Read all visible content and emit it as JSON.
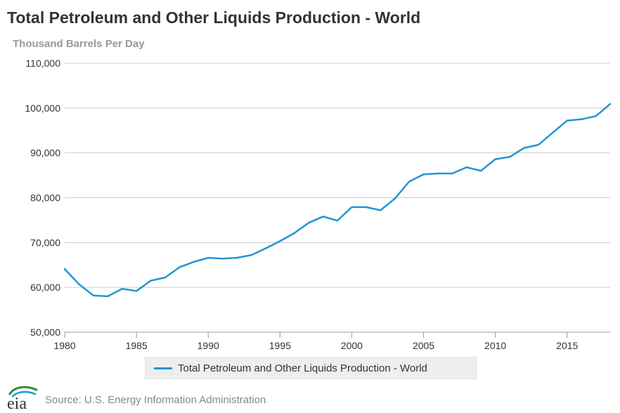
{
  "header": {
    "title": "Total Petroleum and Other Liquids Production - World",
    "subtitle": "Thousand Barrels Per Day"
  },
  "legend": {
    "label": "Total Petroleum and Other Liquids Production - World"
  },
  "footer": {
    "logo_text": "eia",
    "source": "Source: U.S. Energy Information Administration"
  },
  "colors": {
    "series": "#1f96d4",
    "grid": "#cccccc",
    "axis_text": "#333333"
  },
  "chart_data": {
    "type": "line",
    "title": "Total Petroleum and Other Liquids Production - World",
    "subtitle": "Thousand Barrels Per Day",
    "xlabel": "",
    "ylabel": "",
    "xlim": [
      1980,
      2018
    ],
    "ylim": [
      50000,
      110000
    ],
    "x_ticks": [
      1980,
      1985,
      1990,
      1995,
      2000,
      2005,
      2010,
      2015
    ],
    "x_tick_labels": [
      "1980",
      "1985",
      "1990",
      "1995",
      "2000",
      "2005",
      "2010",
      "2015"
    ],
    "y_ticks": [
      50000,
      60000,
      70000,
      80000,
      90000,
      100000,
      110000
    ],
    "y_tick_labels": [
      "50,000",
      "60,000",
      "70,000",
      "80,000",
      "90,000",
      "100,000",
      "110,000"
    ],
    "grid": true,
    "legend_position": "bottom",
    "x": [
      1980,
      1981,
      1982,
      1983,
      1984,
      1985,
      1986,
      1987,
      1988,
      1989,
      1990,
      1991,
      1992,
      1993,
      1994,
      1995,
      1996,
      1997,
      1998,
      1999,
      2000,
      2001,
      2002,
      2003,
      2004,
      2005,
      2006,
      2007,
      2008,
      2009,
      2010,
      2011,
      2012,
      2013,
      2014,
      2015,
      2016,
      2017,
      2018
    ],
    "series": [
      {
        "name": "Total Petroleum and Other Liquids Production - World",
        "values": [
          64100,
          60700,
          58200,
          58000,
          59700,
          59200,
          61500,
          62200,
          64500,
          65700,
          66600,
          66400,
          66600,
          67200,
          68700,
          70300,
          72100,
          74400,
          75800,
          74900,
          77900,
          77900,
          77200,
          79800,
          83600,
          85200,
          85400,
          85400,
          86800,
          86000,
          88600,
          89100,
          91100,
          91800,
          94500,
          97200,
          97500,
          98200,
          100900
        ]
      }
    ]
  }
}
